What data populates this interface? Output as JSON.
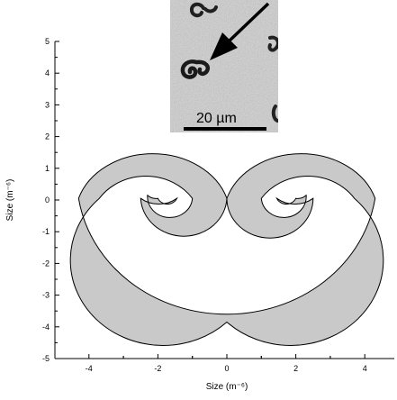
{
  "chart_data": {
    "type": "scatter",
    "title": "",
    "xlabel": "Size (m⁻⁶)",
    "ylabel": "Size (m⁻⁶)",
    "xlim": [
      -5,
      5
    ],
    "ylim": [
      -5,
      5
    ],
    "x_ticks": [
      "-4",
      "-2",
      "0",
      "2",
      "4"
    ],
    "y_ticks": [
      "5",
      "4",
      "3",
      "2",
      "1",
      "0",
      "-1",
      "-2",
      "-3",
      "-4",
      "-5"
    ],
    "grid": false,
    "legend": "none",
    "shape": {
      "description": "double spiral (ram's horn) band",
      "fill_color": "#c9c9c9",
      "outline_color": "#000000",
      "left_spiral_center": [
        -2.05,
        0.05
      ],
      "right_spiral_center": [
        2.05,
        0.05
      ],
      "outer_extent_x": [
        -4.35,
        4.35
      ],
      "outer_extent_y": [
        -4.25,
        2.0
      ]
    },
    "inset": {
      "type": "micrograph",
      "scale_bar_label": "20 µm",
      "arrow": "points to spiral particle"
    }
  }
}
